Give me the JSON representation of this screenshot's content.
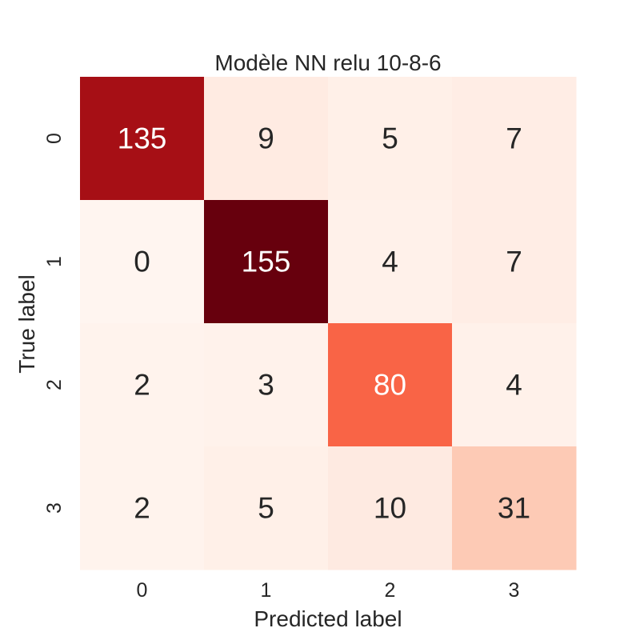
{
  "chart_data": {
    "type": "heatmap",
    "title": "Modèle NN relu 10-8-6",
    "xlabel": "Predicted label",
    "ylabel": "True label",
    "x_categories": [
      "0",
      "1",
      "2",
      "3"
    ],
    "y_categories": [
      "0",
      "1",
      "2",
      "3"
    ],
    "values": [
      [
        135,
        9,
        5,
        7
      ],
      [
        0,
        155,
        4,
        7
      ],
      [
        2,
        3,
        80,
        4
      ],
      [
        2,
        5,
        10,
        31
      ]
    ],
    "colormap": "Reds",
    "vmin": 0,
    "vmax": 155,
    "colorbar": false,
    "grid": false
  },
  "colors": {
    "text_dark": "#262626",
    "text_light": "#ffffff",
    "background": "#ffffff"
  }
}
